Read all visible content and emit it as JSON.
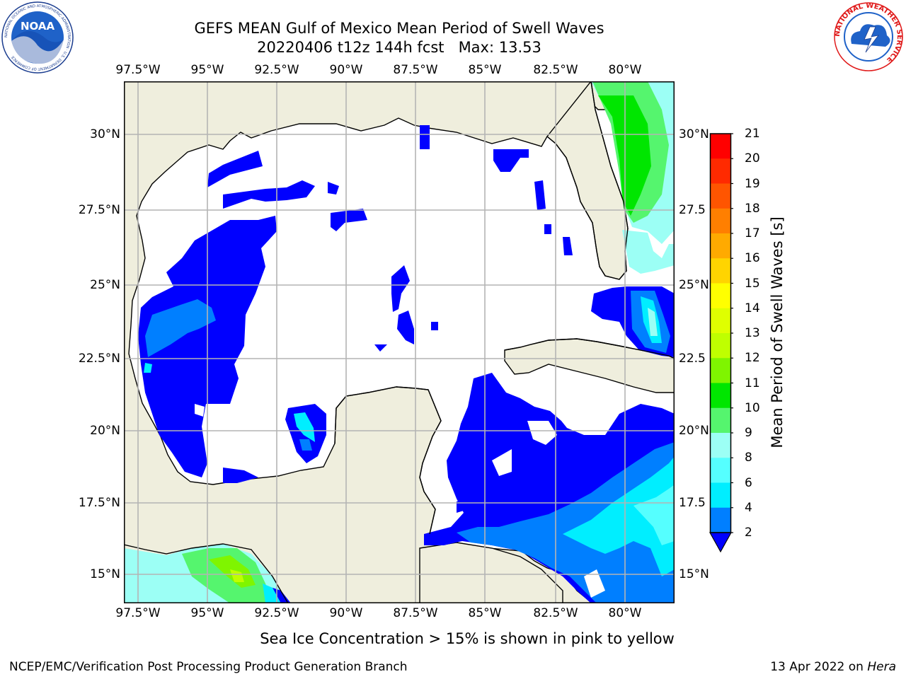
{
  "title": {
    "line1": "GEFS MEAN Gulf of Mexico Mean Period of Swell Waves",
    "line2": "20220406 t12z 144h fcst   Max: 13.53"
  },
  "logos": {
    "left": {
      "name": "NOAA",
      "ring_text": "NATIONAL OCEANIC AND ATMOSPHERIC ADMINISTRATION · U.S. DEPARTMENT OF COMMERCE",
      "icon": "noaa-logo-icon"
    },
    "right": {
      "ring_text": "NATIONAL WEATHER SERVICE",
      "icon": "nws-logo-icon"
    }
  },
  "map": {
    "lon_ticks": [
      "97.5°W",
      "95°W",
      "92.5°W",
      "90°W",
      "87.5°W",
      "85°W",
      "82.5°W",
      "80°W"
    ],
    "lat_ticks_left": [
      "30°N",
      "27.5°N",
      "25°N",
      "22.5°N",
      "20°N",
      "17.5°N",
      "15°N"
    ],
    "lat_ticks_right": [
      "30°N",
      "27.5",
      "25°N",
      "22.5",
      "20°N",
      "17.5",
      "15°N"
    ],
    "colors": {
      "land": "#efeedd",
      "ocean": "#ffffff",
      "grid": "#b4b4b4",
      "coast": "#000000"
    }
  },
  "colorbar": {
    "label": "Mean Period of Swell Waves [s]",
    "ticks": [
      "21",
      "20",
      "19",
      "18",
      "17",
      "16",
      "15",
      "14",
      "13",
      "12",
      "11",
      "10",
      "9",
      "8",
      "6",
      "4",
      "2"
    ],
    "colors": [
      "#ff0000",
      "#ff2a00",
      "#ff5500",
      "#ff7f00",
      "#ffaa00",
      "#ffd400",
      "#ffff00",
      "#dfff00",
      "#bfff00",
      "#7ff500",
      "#00e600",
      "#55f56e",
      "#9cfff5",
      "#55ffff",
      "#00eeff",
      "#007fff",
      "#0000ff"
    ],
    "extend": "min"
  },
  "field_colors": {
    "c2": "#0000ff",
    "c4": "#007fff",
    "c6": "#00eeff",
    "c8": "#55ffff",
    "c9": "#9cfff5",
    "c10": "#55f56e",
    "c11": "#00e600",
    "c12": "#7ff500",
    "c13": "#bfff00"
  },
  "footer": {
    "note": "Sea Ice Concentration > 15% is shown in pink to yellow",
    "credit_left": "NCEP/EMC/Verification Post Processing Product Generation Branch",
    "date": "13 Apr 2022 on ",
    "system": "Hera"
  }
}
